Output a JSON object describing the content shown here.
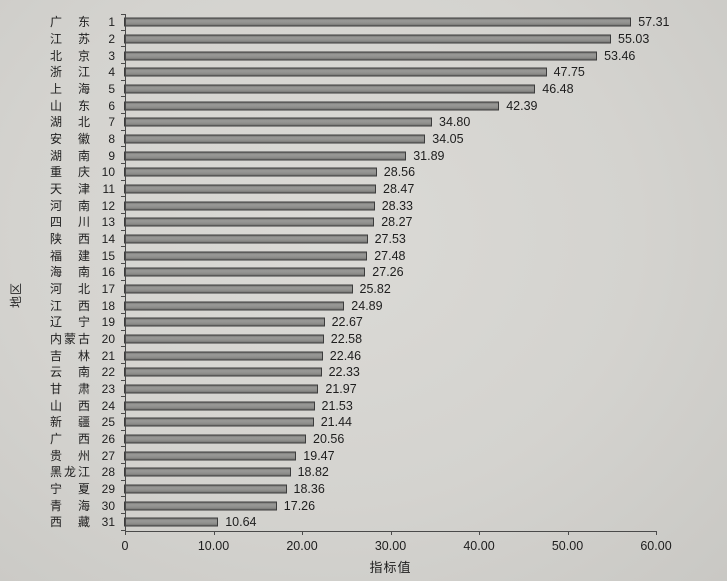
{
  "chart_data": {
    "type": "bar",
    "orientation": "horizontal",
    "title": "",
    "xlabel": "指标值",
    "ylabel": "地区",
    "xlim": [
      0,
      60
    ],
    "grid": false,
    "legend": "none",
    "xticks": [
      "0",
      "10.00",
      "20.00",
      "30.00",
      "40.00",
      "50.00",
      "60.00"
    ],
    "xtick_values": [
      0,
      10,
      20,
      30,
      40,
      50,
      60
    ],
    "categories": [
      "广东",
      "江苏",
      "北京",
      "浙江",
      "上海",
      "山东",
      "湖北",
      "安徽",
      "湖南",
      "重庆",
      "天津",
      "河南",
      "四川",
      "陕西",
      "福建",
      "海南",
      "河北",
      "江西",
      "辽宁",
      "内蒙古",
      "吉林",
      "云南",
      "甘肃",
      "山西",
      "新疆",
      "广西",
      "贵州",
      "黑龙江",
      "宁夏",
      "青海",
      "西藏"
    ],
    "ranks": [
      "1",
      "2",
      "3",
      "4",
      "5",
      "6",
      "7",
      "8",
      "9",
      "10",
      "11",
      "12",
      "13",
      "14",
      "15",
      "16",
      "17",
      "18",
      "19",
      "20",
      "21",
      "22",
      "23",
      "24",
      "25",
      "26",
      "27",
      "28",
      "29",
      "30",
      "31"
    ],
    "values": [
      57.31,
      55.03,
      53.46,
      47.75,
      46.48,
      42.39,
      34.8,
      34.05,
      31.89,
      28.56,
      28.47,
      28.33,
      28.27,
      27.53,
      27.48,
      27.26,
      25.82,
      24.89,
      22.67,
      22.58,
      22.46,
      22.33,
      21.97,
      21.53,
      21.44,
      20.56,
      19.47,
      18.82,
      18.36,
      17.26,
      10.64
    ],
    "value_labels": [
      "57.31",
      "55.03",
      "53.46",
      "47.75",
      "46.48",
      "42.39",
      "34.80",
      "34.05",
      "31.89",
      "28.56",
      "28.47",
      "28.33",
      "28.27",
      "27.53",
      "27.48",
      "27.26",
      "25.82",
      "24.89",
      "22.67",
      "22.58",
      "22.46",
      "22.33",
      "21.97",
      "21.53",
      "21.44",
      "20.56",
      "19.47",
      "18.82",
      "18.36",
      "17.26",
      "10.64"
    ],
    "colors": {
      "bar_fill": "#8f8f8c",
      "bar_border": "#3c3c3c",
      "axis": "#4a4a4a",
      "text": "#1e1e1e",
      "paper": "#d4d3cf"
    }
  }
}
